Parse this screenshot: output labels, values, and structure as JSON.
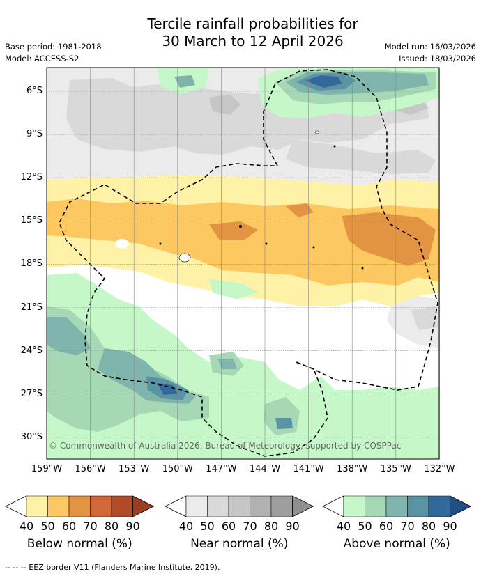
{
  "title_line1": "Tercile rainfall probabilities for",
  "title_line2": "30 March to 12 April 2026",
  "base_period": "Base period: 1981-2018",
  "model": "Model: ACCESS-S2",
  "model_run": "Model run: 16/03/2026",
  "issued": "Issued: 18/03/2026",
  "copyright": "© Commonwealth of Australia 2026, Bureau of Meteorology, supported by COSPPac",
  "lat_ticks": [
    "6°S",
    "9°S",
    "12°S",
    "15°S",
    "18°S",
    "21°S",
    "24°S",
    "27°S",
    "30°S"
  ],
  "lon_ticks": [
    "159°W",
    "156°W",
    "153°W",
    "150°W",
    "147°W",
    "144°W",
    "141°W",
    "138°W",
    "135°W",
    "132°W"
  ],
  "colorbars": [
    {
      "name": "below",
      "title": "Below normal (%)",
      "ticks": [
        "40",
        "50",
        "60",
        "70",
        "80",
        "90"
      ],
      "colors": [
        "#fff1a5",
        "#fdc862",
        "#e39442",
        "#d1683a",
        "#b14a27",
        "#9b3d24"
      ]
    },
    {
      "name": "near",
      "title": "Near normal (%)",
      "ticks": [
        "40",
        "50",
        "60",
        "70",
        "80",
        "90"
      ],
      "colors": [
        "#ebebeb",
        "#d9d9d9",
        "#c6c6c6",
        "#b1b1b1",
        "#9e9e9e",
        "#8f8f8f"
      ]
    },
    {
      "name": "above",
      "title": "Above normal (%)",
      "ticks": [
        "40",
        "50",
        "60",
        "70",
        "80",
        "90"
      ],
      "colors": [
        "#c6f7c9",
        "#a6d8b5",
        "#7fb5ac",
        "#5a93a3",
        "#33699a",
        "#1e4e83"
      ]
    }
  ],
  "footnote": "--  --  -- EEZ border V11 (Flanders Marine Institute, 2019).",
  "colors": {
    "grid": "#888888",
    "coast_fill": "#ffffff",
    "eez": "#000000"
  }
}
